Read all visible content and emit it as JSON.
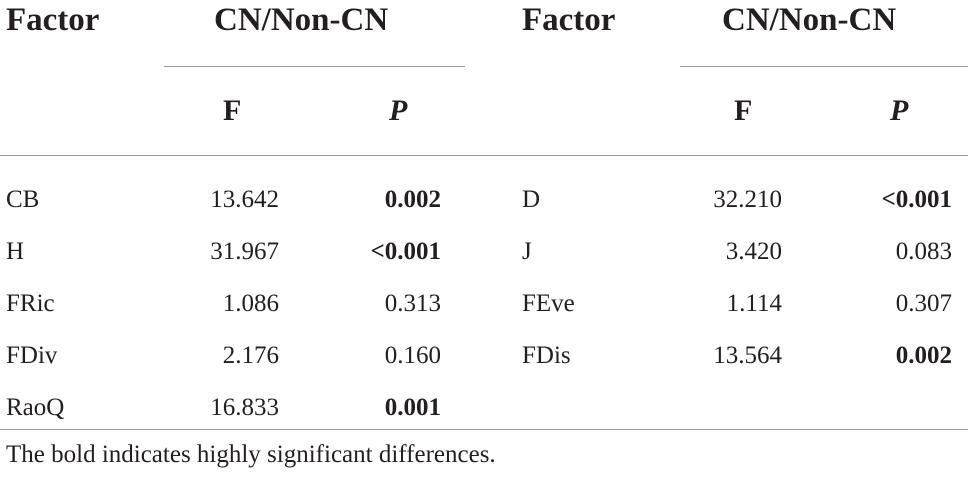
{
  "headers": {
    "factor": "Factor",
    "group": "CN/Non-CN",
    "f": "F",
    "p": "P"
  },
  "left_rows": [
    {
      "factor": "CB",
      "f": "13.642",
      "p": "0.002",
      "p_bold": true
    },
    {
      "factor": "H",
      "f": "31.967",
      "p": "<0.001",
      "p_bold": true
    },
    {
      "factor": "FRic",
      "f": "1.086",
      "p": "0.313",
      "p_bold": false
    },
    {
      "factor": "FDiv",
      "f": "2.176",
      "p": "0.160",
      "p_bold": false
    },
    {
      "factor": "RaoQ",
      "f": "16.833",
      "p": "0.001",
      "p_bold": true
    }
  ],
  "right_rows": [
    {
      "factor": "D",
      "f": "32.210",
      "p": "<0.001",
      "p_bold": true
    },
    {
      "factor": "J",
      "f": "3.420",
      "p": "0.083",
      "p_bold": false
    },
    {
      "factor": "FEve",
      "f": "1.114",
      "p": "0.307",
      "p_bold": false
    },
    {
      "factor": "FDis",
      "f": "13.564",
      "p": "0.002",
      "p_bold": true
    }
  ],
  "footnote": "The bold indicates highly significant differences."
}
